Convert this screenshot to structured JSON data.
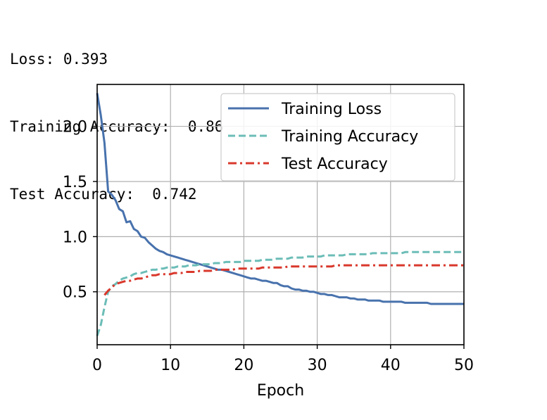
{
  "output": {
    "loss_line": "Loss: 0.393",
    "train_line": "Training Accuracy:  0.86",
    "test_line": "Test Accuracy:  0.742"
  },
  "chart_data": {
    "type": "line",
    "title": "",
    "xlabel": "Epoch",
    "ylabel": "",
    "xlim": [
      0,
      50
    ],
    "ylim": [
      0.02,
      2.38
    ],
    "xticks": [
      0,
      10,
      20,
      30,
      40,
      50
    ],
    "yticks": [
      0.5,
      1.0,
      1.5,
      2.0
    ],
    "xtick_labels": [
      "0",
      "10",
      "20",
      "30",
      "40",
      "50"
    ],
    "ytick_labels": [
      "0.5",
      "1.0",
      "1.5",
      "2.0"
    ],
    "grid": true,
    "legend": "top-right",
    "x": [
      0,
      0.5,
      1,
      1.5,
      2,
      2.5,
      3,
      3.5,
      4,
      4.5,
      5,
      5.5,
      6,
      6.5,
      7,
      7.5,
      8,
      8.5,
      9,
      9.5,
      10,
      10.5,
      11,
      11.5,
      12,
      12.5,
      13,
      13.5,
      14,
      14.5,
      15,
      15.5,
      16,
      16.5,
      17,
      17.5,
      18,
      18.5,
      19,
      19.5,
      20,
      20.5,
      21,
      21.5,
      22,
      22.5,
      23,
      23.5,
      24,
      24.5,
      25,
      25.5,
      26,
      26.5,
      27,
      27.5,
      28,
      28.5,
      29,
      29.5,
      30,
      30.5,
      31,
      31.5,
      32,
      32.5,
      33,
      33.5,
      34,
      34.5,
      35,
      35.5,
      36,
      36.5,
      37,
      37.5,
      38,
      38.5,
      39,
      39.5,
      40,
      40.5,
      41,
      41.5,
      42,
      42.5,
      43,
      43.5,
      44,
      44.5,
      45,
      45.5,
      46,
      46.5,
      47,
      47.5,
      48,
      48.5,
      49,
      49.5,
      50
    ],
    "series": [
      {
        "name": "Training Loss",
        "color": "#4872ad",
        "dash": "solid",
        "values": [
          2.3,
          2.1,
          1.85,
          1.41,
          1.38,
          1.33,
          1.25,
          1.23,
          1.13,
          1.14,
          1.07,
          1.05,
          1.0,
          0.99,
          0.95,
          0.92,
          0.89,
          0.87,
          0.86,
          0.84,
          0.83,
          0.82,
          0.81,
          0.8,
          0.79,
          0.78,
          0.77,
          0.76,
          0.75,
          0.74,
          0.73,
          0.72,
          0.71,
          0.7,
          0.7,
          0.69,
          0.68,
          0.67,
          0.66,
          0.65,
          0.64,
          0.63,
          0.62,
          0.62,
          0.61,
          0.6,
          0.6,
          0.59,
          0.58,
          0.58,
          0.56,
          0.55,
          0.55,
          0.53,
          0.52,
          0.52,
          0.51,
          0.51,
          0.5,
          0.5,
          0.49,
          0.48,
          0.48,
          0.47,
          0.47,
          0.46,
          0.45,
          0.45,
          0.45,
          0.44,
          0.44,
          0.43,
          0.43,
          0.43,
          0.42,
          0.42,
          0.42,
          0.42,
          0.41,
          0.41,
          0.41,
          0.41,
          0.41,
          0.41,
          0.4,
          0.4,
          0.4,
          0.4,
          0.4,
          0.4,
          0.4,
          0.39,
          0.39,
          0.39,
          0.39,
          0.39,
          0.39,
          0.39,
          0.39,
          0.39,
          0.39
        ]
      },
      {
        "name": "Training Accuracy",
        "color": "#6cbdb7",
        "dash": "dashed",
        "values": [
          0.1,
          0.2,
          0.36,
          0.5,
          0.55,
          0.57,
          0.6,
          0.62,
          0.63,
          0.64,
          0.66,
          0.67,
          0.67,
          0.68,
          0.69,
          0.7,
          0.7,
          0.71,
          0.71,
          0.72,
          0.72,
          0.72,
          0.73,
          0.73,
          0.73,
          0.74,
          0.74,
          0.74,
          0.75,
          0.75,
          0.75,
          0.75,
          0.76,
          0.76,
          0.76,
          0.77,
          0.77,
          0.77,
          0.77,
          0.77,
          0.78,
          0.78,
          0.78,
          0.78,
          0.78,
          0.79,
          0.79,
          0.79,
          0.79,
          0.8,
          0.8,
          0.8,
          0.8,
          0.81,
          0.81,
          0.81,
          0.81,
          0.82,
          0.82,
          0.82,
          0.82,
          0.82,
          0.83,
          0.83,
          0.83,
          0.83,
          0.83,
          0.83,
          0.84,
          0.84,
          0.84,
          0.84,
          0.84,
          0.84,
          0.84,
          0.85,
          0.85,
          0.85,
          0.85,
          0.85,
          0.85,
          0.85,
          0.85,
          0.85,
          0.86,
          0.86,
          0.86,
          0.86,
          0.86,
          0.86,
          0.86,
          0.86,
          0.86,
          0.86,
          0.86,
          0.86,
          0.86,
          0.86,
          0.86,
          0.86,
          0.86
        ]
      },
      {
        "name": "Test Accuracy",
        "color": "#d9382c",
        "dash": "dashdot",
        "values": [
          null,
          null,
          0.47,
          0.51,
          0.54,
          0.57,
          0.58,
          0.59,
          0.6,
          0.6,
          0.61,
          0.62,
          0.62,
          0.63,
          0.64,
          0.65,
          0.65,
          0.66,
          0.66,
          0.66,
          0.66,
          0.67,
          0.67,
          0.67,
          0.68,
          0.68,
          0.68,
          0.68,
          0.69,
          0.69,
          0.69,
          0.69,
          0.7,
          0.7,
          0.7,
          0.7,
          0.7,
          0.7,
          0.71,
          0.71,
          0.71,
          0.71,
          0.71,
          0.71,
          0.71,
          0.72,
          0.72,
          0.72,
          0.72,
          0.72,
          0.72,
          0.72,
          0.73,
          0.73,
          0.73,
          0.73,
          0.73,
          0.73,
          0.73,
          0.73,
          0.73,
          0.73,
          0.73,
          0.73,
          0.73,
          0.74,
          0.74,
          0.74,
          0.74,
          0.74,
          0.74,
          0.74,
          0.74,
          0.74,
          0.74,
          0.74,
          0.74,
          0.74,
          0.74,
          0.74,
          0.74,
          0.74,
          0.74,
          0.74,
          0.74,
          0.74,
          0.74,
          0.74,
          0.74,
          0.74,
          0.74,
          0.74,
          0.74,
          0.74,
          0.74,
          0.74,
          0.74,
          0.74,
          0.74,
          0.74,
          0.74
        ]
      }
    ]
  }
}
